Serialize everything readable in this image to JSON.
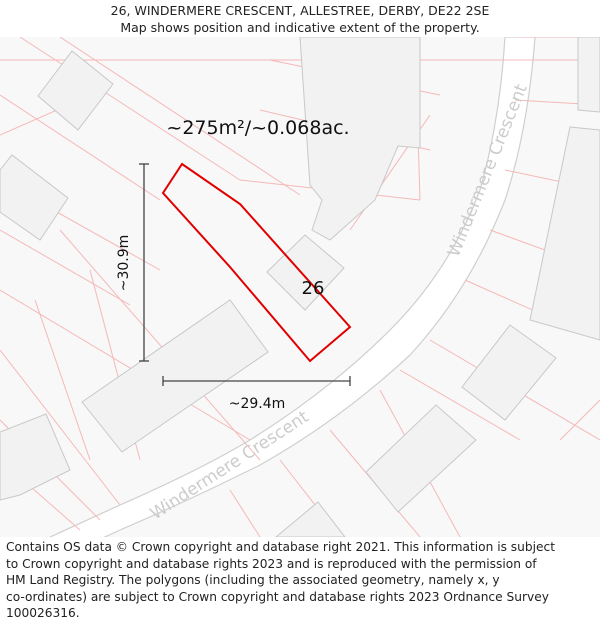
{
  "header": {
    "title": "26, WINDERMERE CRESCENT, ALLESTREE, DERBY, DE22 2SE",
    "subtitle": "Map shows position and indicative extent of the property."
  },
  "map": {
    "area_label": "~275m²/~0.068ac.",
    "house_number": "26",
    "height_label": "~30.9m",
    "width_label": "~29.4m",
    "street_labels": [
      "Windermere Crescent",
      "Windermere Crescent"
    ],
    "colors": {
      "background": "#f8f8f8",
      "building_fill": "#f2f2f2",
      "building_stroke": "#c8c8c8",
      "parcel_line": "#f5b8b8",
      "road_fill": "#ffffff",
      "road_edge": "#cfcfcf",
      "street_label": "#cccccc",
      "plot_outline": "#e00000",
      "dimension_line": "#444444"
    }
  },
  "footer": {
    "lines": [
      "Contains OS data © Crown copyright and database right 2021. This information is subject",
      "to Crown copyright and database rights 2023 and is reproduced with the permission of",
      "HM Land Registry. The polygons (including the associated geometry, namely x, y",
      "co-ordinates) are subject to Crown copyright and database rights 2023 Ordnance Survey",
      "100026316."
    ]
  }
}
